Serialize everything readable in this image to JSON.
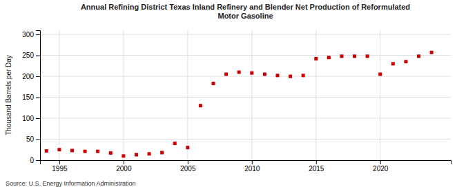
{
  "chart_data": {
    "type": "scatter",
    "title": "Annual Refining District Texas Inland Refinery and Blender Net Production of Reformulated\nMotor Gasoline",
    "y_label": "Thousand Barrels per Day",
    "annotations": [
      "Source: U.S. Energy Information Administration"
    ],
    "x": [
      1994,
      1995,
      1996,
      1997,
      1998,
      1999,
      2000,
      2001,
      2002,
      2003,
      2004,
      2005,
      2006,
      2007,
      2008,
      2009,
      2010,
      2011,
      2012,
      2013,
      2014,
      2015,
      2016,
      2017,
      2018,
      2019,
      2020,
      2021,
      2022,
      2023,
      2024
    ],
    "values": [
      22,
      25,
      23,
      21,
      21,
      17,
      10,
      13,
      15,
      18,
      40,
      30,
      130,
      183,
      205,
      210,
      208,
      205,
      202,
      200,
      202,
      242,
      245,
      248,
      248,
      248,
      205,
      230,
      235,
      248,
      257
    ],
    "color": "#cc0000",
    "marker": "square",
    "xlim": [
      1993.5,
      2025.5
    ],
    "ylim": [
      0,
      310
    ],
    "xticks": [
      1995,
      2000,
      2005,
      2010,
      2015,
      2020
    ],
    "yticks": [
      0,
      50,
      100,
      150,
      200,
      250,
      300
    ],
    "grid": true
  }
}
